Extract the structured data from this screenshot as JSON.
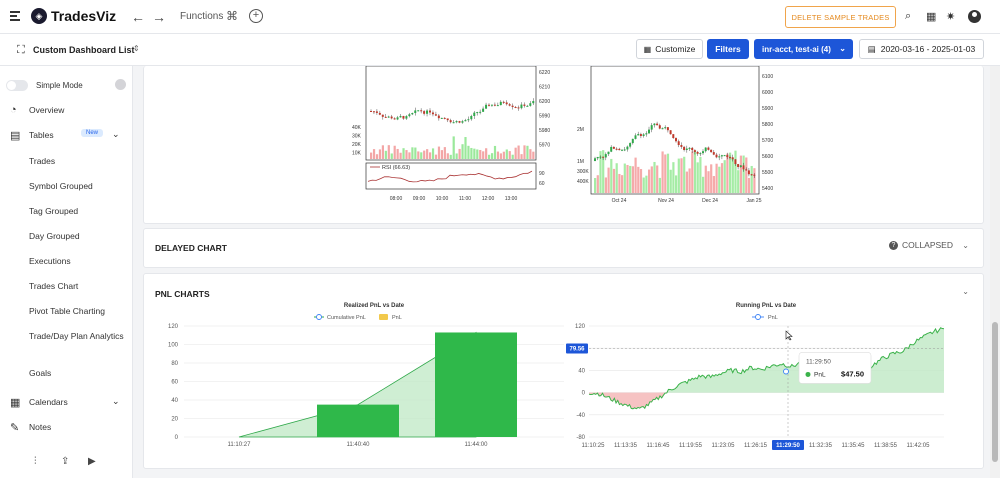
{
  "app": {
    "name": "TradesViz",
    "functions_label": "Functions"
  },
  "header": {
    "delete_sample_label": "DELETE SAMPLE TRADES",
    "dashboard_title": "Custom Dashboard List",
    "customize_label": "Customize",
    "filters_label": "Filters",
    "account_label": "inr-acct, test-ai (4)",
    "date_range": "2020-03-16 - 2025-01-03"
  },
  "sidebar": {
    "simple_mode_label": "Simple Mode",
    "overview": "Overview",
    "tables": "Tables",
    "new_badge": "New",
    "table_items": [
      "Trades",
      "Symbol Grouped",
      "Tag Grouped",
      "Day Grouped",
      "Executions",
      "Trades Chart",
      "Pivot Table Charting",
      "Trade/Day Plan Analytics",
      "Goals"
    ],
    "calendars": "Calendars",
    "notes": "Notes"
  },
  "cards": {
    "delayed_chart_title": "DELAYED CHART",
    "collapsed_label": "COLLAPSED",
    "pnl_charts_title": "PNL CHARTS"
  },
  "thumbnails": {
    "left_rsi_label": "RSI (66.63)",
    "left_x_ticks": [
      "08:00",
      "09:00",
      "10:00",
      "11:00",
      "12:00",
      "13:00"
    ],
    "left_price_ticks": [
      "6220",
      "6210",
      "6200",
      "5990",
      "5980",
      "5970"
    ],
    "left_vol_ticks": [
      "40K",
      "30K",
      "20K",
      "10K"
    ],
    "left_rsi_ticks": [
      "90",
      "60"
    ],
    "right_x_ticks": [
      "Oct 24",
      "Nov 24",
      "Dec 24",
      "Jan 25"
    ],
    "right_price_ticks": [
      "6100",
      "6000",
      "5900",
      "5800",
      "5700",
      "5600",
      "5500",
      "5400"
    ],
    "right_vol_ticks": [
      "2M",
      "1M",
      "300K",
      "400K"
    ]
  },
  "chart_data": [
    {
      "type": "bar",
      "title": "Realized PnL vs Date",
      "legend": [
        "Cumulative PnL",
        "PnL"
      ],
      "legend_placement": "top-center",
      "categories": [
        "11:10:27",
        "11:40:40",
        "11:44:00"
      ],
      "series": [
        {
          "name": "PnL",
          "values": [
            0,
            35,
            113
          ]
        },
        {
          "name": "Cumulative PnL",
          "values": [
            0,
            35,
            113
          ]
        }
      ],
      "ylim": [
        0,
        120
      ],
      "yticks": [
        0,
        20,
        40,
        60,
        80,
        100,
        120
      ],
      "colors": {
        "bar": "#2fb84a",
        "line": "#2fa84a"
      }
    },
    {
      "type": "area",
      "title": "Running PnL vs Date",
      "legend": [
        "PnL"
      ],
      "legend_placement": "top-center",
      "x_ticks": [
        "11:10:25",
        "11:13:35",
        "11:16:45",
        "11:19:55",
        "11:23:05",
        "11:26:15",
        "11:29:50",
        "11:32:35",
        "11:35:45",
        "11:38:55",
        "11:42:05"
      ],
      "ylim": [
        -80,
        120
      ],
      "yticks": [
        -80,
        -40,
        0,
        40,
        80,
        120
      ],
      "series": [
        {
          "name": "PnL",
          "values": [
            0,
            -2,
            -10,
            -18,
            -25,
            -30,
            -20,
            -8,
            5,
            15,
            22,
            30,
            28,
            35,
            40,
            38,
            45,
            42,
            48,
            52,
            47,
            55,
            60,
            58,
            47,
            30,
            20,
            35,
            50,
            62,
            70,
            75,
            90,
            100,
            110,
            115
          ]
        }
      ],
      "crosshair_value": "79.56",
      "crosshair_time": "11:29:50",
      "tooltip": {
        "time": "11:29:50",
        "series": "PnL",
        "value": "$47.50"
      },
      "colors": {
        "positive": "#3bb24a",
        "negative": "#e05555"
      }
    }
  ]
}
